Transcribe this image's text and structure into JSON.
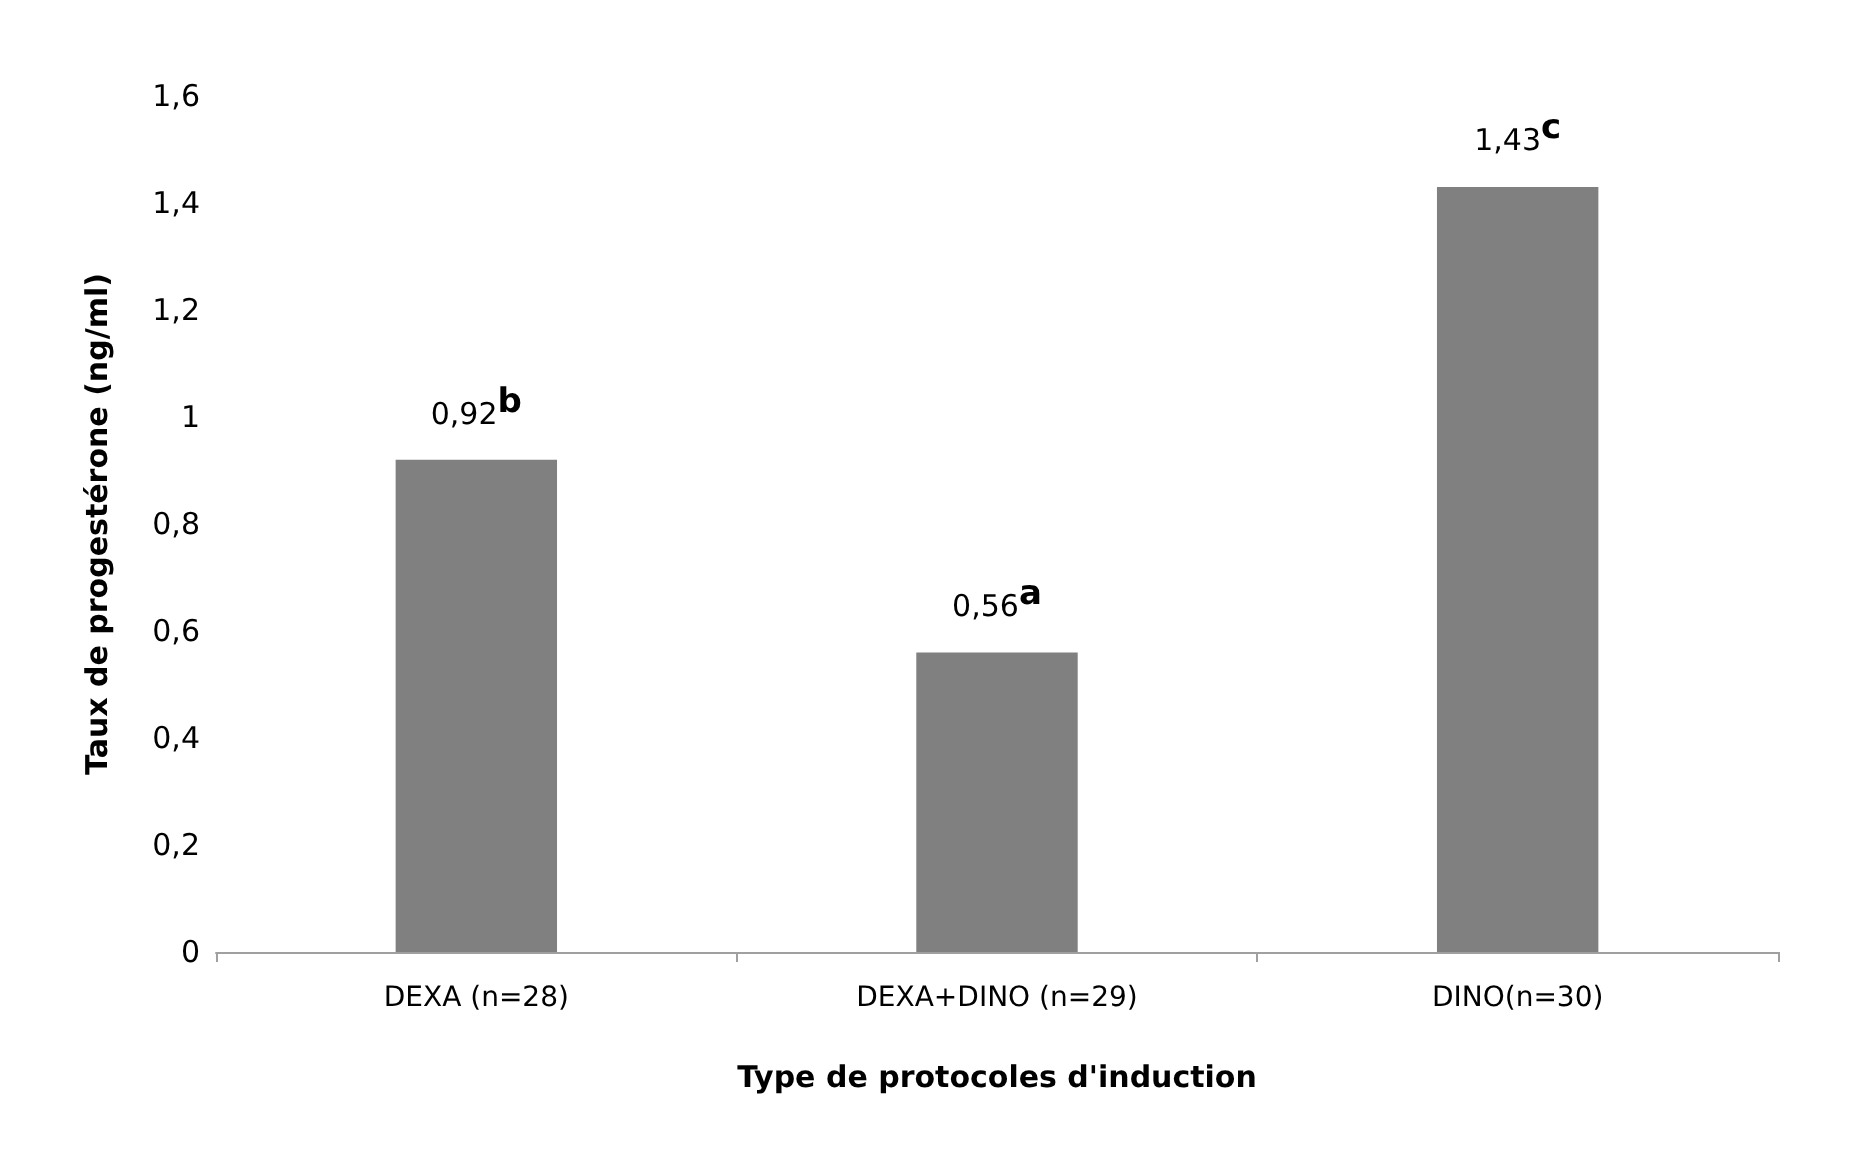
{
  "chart_data": {
    "type": "bar",
    "xlabel": "Type de protocoles d'induction",
    "ylabel": "Taux de progestérone (ng/ml)",
    "categories": [
      "DEXA (n=28)",
      "DEXA+DINO (n=29)",
      "DINO(n=30)"
    ],
    "values": [
      0.92,
      0.56,
      1.43
    ],
    "value_labels": [
      "0,92$^{b}$",
      "0,56$^{a}$",
      "1,43$^{c}$"
    ],
    "color": "#808080",
    "ylim": [
      0,
      1.6
    ],
    "yticks": [
      0,
      {
        "value": 0.2,
        "label": "0,2"
      },
      {
        "value": 0.4,
        "label": "0,4"
      },
      {
        "value": 0.6,
        "label": "0,6"
      },
      {
        "value": 0.8,
        "label": "0,8"
      },
      1,
      {
        "value": 1.2,
        "label": "1,2"
      },
      {
        "value": 1.4,
        "label": "1,4"
      },
      {
        "value": 1.6,
        "label": "1,6"
      }
    ],
    "grid": false
  }
}
